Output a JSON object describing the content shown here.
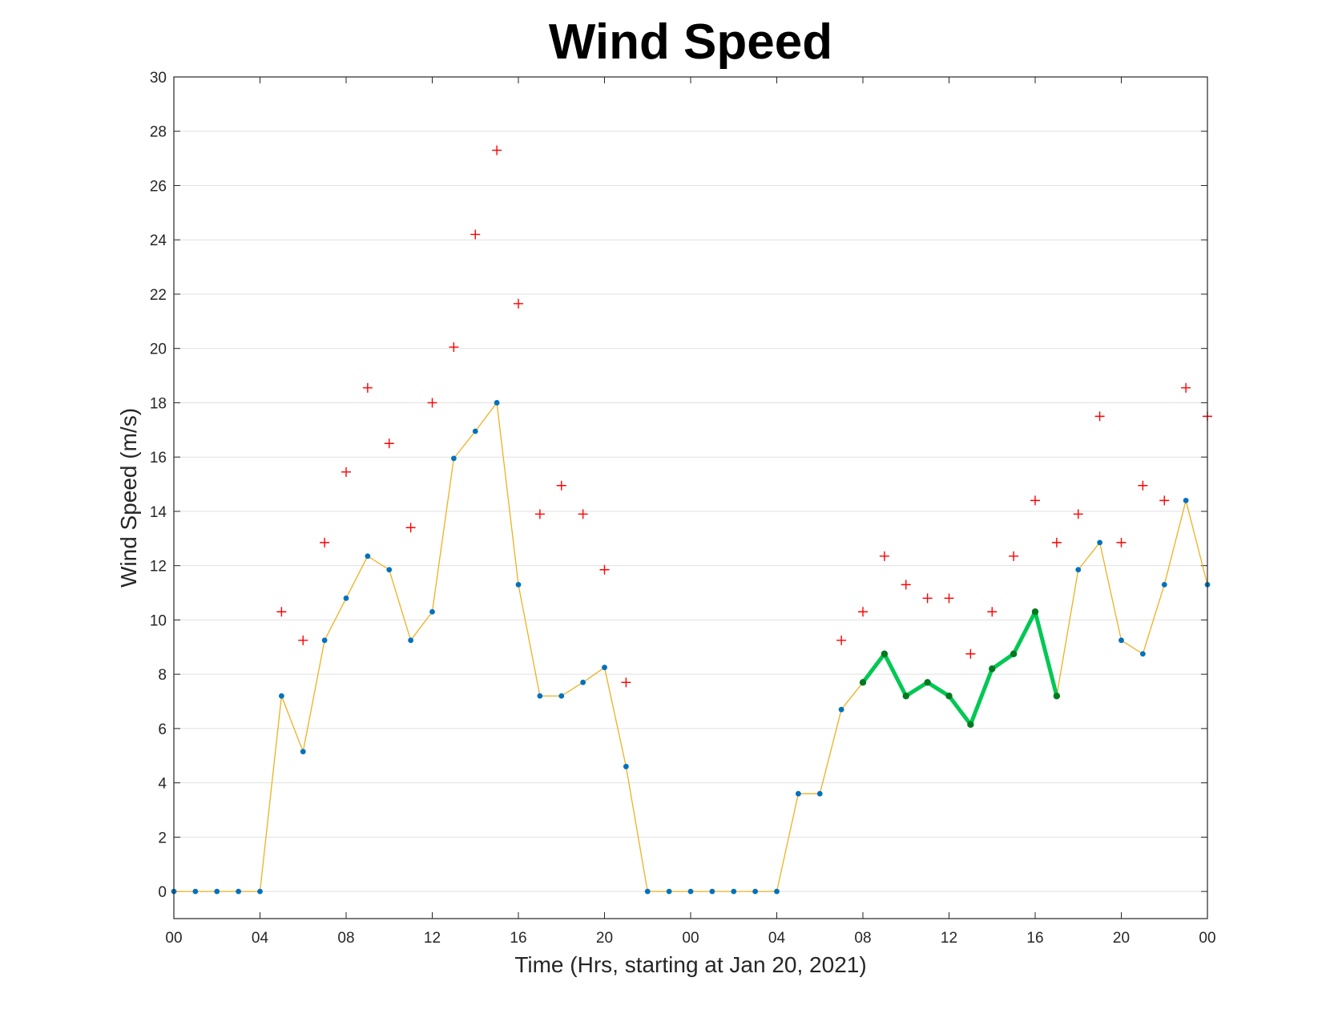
{
  "chart_data": {
    "type": "line",
    "title": "Wind Speed",
    "xlabel": "Time (Hrs, starting at Jan 20, 2021)",
    "ylabel": "Wind Speed (m/s)",
    "ylim": [
      -1,
      30
    ],
    "xlim": [
      0,
      48
    ],
    "grid": "horizontal",
    "yticks": [
      0,
      2,
      4,
      6,
      8,
      10,
      12,
      14,
      16,
      18,
      20,
      22,
      24,
      26,
      28,
      30
    ],
    "xticks": [
      {
        "x": 0,
        "label": "00"
      },
      {
        "x": 4,
        "label": "04"
      },
      {
        "x": 8,
        "label": "08"
      },
      {
        "x": 12,
        "label": "12"
      },
      {
        "x": 16,
        "label": "16"
      },
      {
        "x": 20,
        "label": "20"
      },
      {
        "x": 24,
        "label": "00"
      },
      {
        "x": 28,
        "label": "04"
      },
      {
        "x": 32,
        "label": "08"
      },
      {
        "x": 36,
        "label": "12"
      },
      {
        "x": 40,
        "label": "16"
      },
      {
        "x": 44,
        "label": "20"
      },
      {
        "x": 48,
        "label": "00"
      }
    ],
    "x": [
      0,
      1,
      2,
      3,
      4,
      5,
      6,
      7,
      8,
      9,
      10,
      11,
      12,
      13,
      14,
      15,
      16,
      17,
      18,
      19,
      20,
      21,
      22,
      23,
      24,
      25,
      26,
      27,
      28,
      29,
      30,
      31,
      32,
      33,
      34,
      35,
      36,
      37,
      38,
      39,
      40,
      41,
      42,
      43,
      44,
      45,
      46,
      47,
      48
    ],
    "series": [
      {
        "role": "wind",
        "color": "#EDB120",
        "marker_color": "#0072BD",
        "values": [
          0,
          0,
          0,
          0,
          0,
          7.2,
          5.15,
          9.25,
          10.8,
          12.35,
          11.85,
          9.25,
          10.3,
          15.95,
          16.95,
          18.0,
          11.3,
          7.2,
          7.2,
          7.7,
          8.25,
          4.6,
          0,
          0,
          0,
          0,
          0,
          0,
          0,
          3.6,
          3.6,
          6.7,
          7.7,
          8.75,
          7.2,
          7.7,
          7.2,
          6.15,
          8.2,
          8.75,
          10.3,
          7.2,
          11.85,
          12.85,
          9.25,
          8.75,
          11.3,
          14.4,
          11.3
        ]
      },
      {
        "role": "gust",
        "color": "#FF0000",
        "marker": "+",
        "x": [
          5,
          6,
          7,
          8,
          9,
          10,
          11,
          12,
          13,
          14,
          15,
          16,
          17,
          18,
          19,
          20,
          21,
          31,
          32,
          33,
          34,
          35,
          36,
          37,
          38,
          39,
          40,
          41,
          42,
          43,
          44,
          45,
          46,
          47,
          48
        ],
        "values": [
          10.3,
          9.25,
          12.85,
          15.45,
          18.55,
          16.5,
          13.4,
          18.0,
          20.05,
          24.2,
          27.3,
          21.65,
          13.9,
          14.95,
          13.9,
          11.85,
          7.7,
          9.25,
          10.3,
          12.35,
          11.3,
          10.8,
          10.8,
          8.75,
          10.3,
          12.35,
          14.4,
          12.85,
          13.9,
          17.5,
          12.85,
          14.95,
          14.4,
          18.55,
          17.5
        ]
      },
      {
        "role": "highlight",
        "color": "#00C853",
        "marker_color": "#007A1F",
        "x": [
          32,
          33,
          34,
          35,
          36,
          37,
          38,
          39,
          40,
          41
        ],
        "values": [
          7.7,
          8.75,
          7.2,
          7.7,
          7.2,
          6.15,
          8.2,
          8.75,
          10.3,
          7.2
        ]
      }
    ]
  }
}
